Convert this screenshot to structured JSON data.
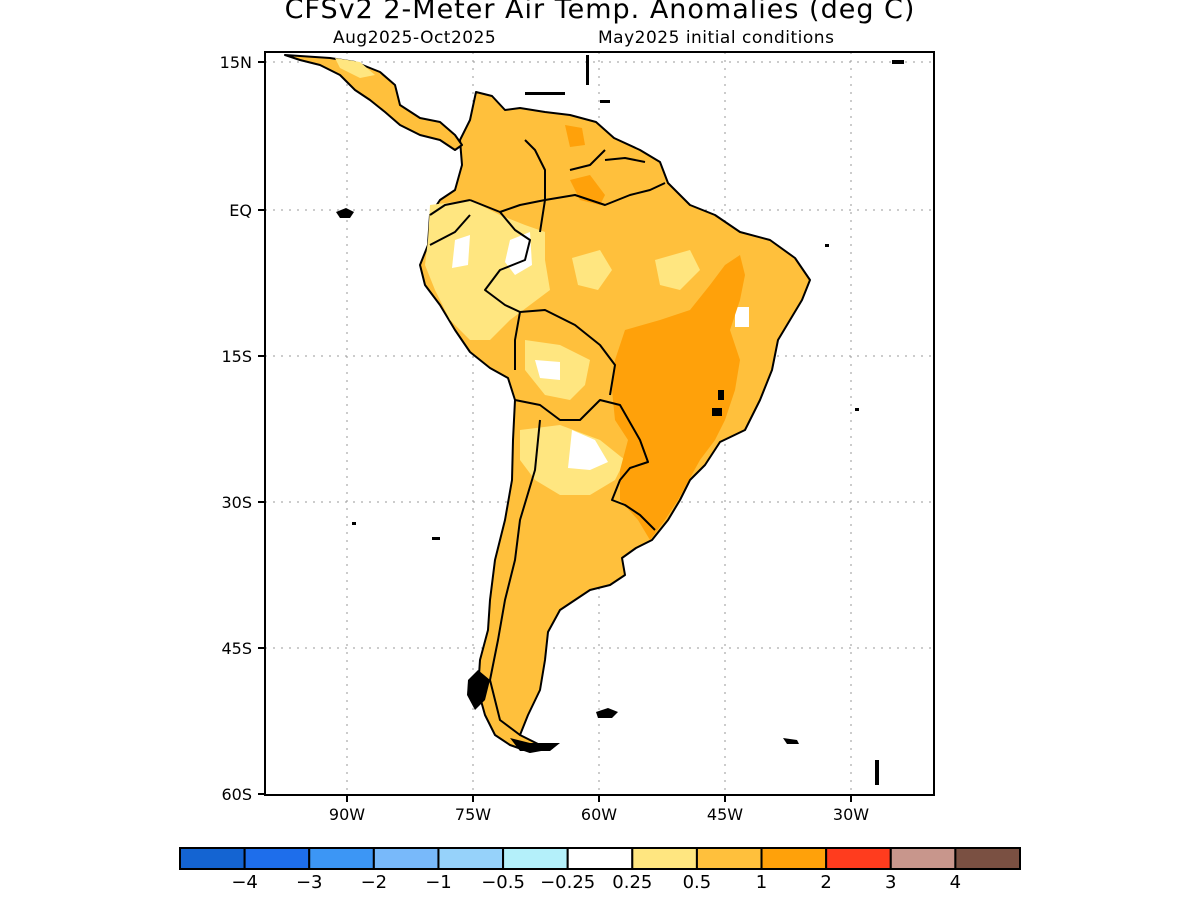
{
  "title": "CFSv2 2-Meter Air Temp. Anomalies (deg C)",
  "subtitle_left": "Aug2025-Oct2025",
  "subtitle_right": "May2025 initial conditions",
  "lat_labels": [
    "15N",
    "EQ",
    "15S",
    "30S",
    "45S",
    "60S"
  ],
  "lon_labels": [
    "90W",
    "75W",
    "60W",
    "45W",
    "30W"
  ],
  "colors": {
    "ocean": "#ffffff",
    "pale": "#ffe680",
    "light": "#ffc03c",
    "orange": "#ffa10a",
    "coast": "#000000"
  },
  "colorbar": {
    "colors": [
      "#1464d2",
      "#1e6eeb",
      "#3c96f5",
      "#78b9fa",
      "#96d2fa",
      "#b4f0fa",
      "#ffffff",
      "#ffe680",
      "#ffc03c",
      "#ffa10a",
      "#ff3c1e",
      "#c8968c",
      "#7a5042"
    ],
    "labels": [
      "-4",
      "-3",
      "-2",
      "-1",
      "-0.5",
      "-0.25",
      "0.25",
      "0.5",
      "1",
      "2",
      "3",
      "4"
    ]
  }
}
